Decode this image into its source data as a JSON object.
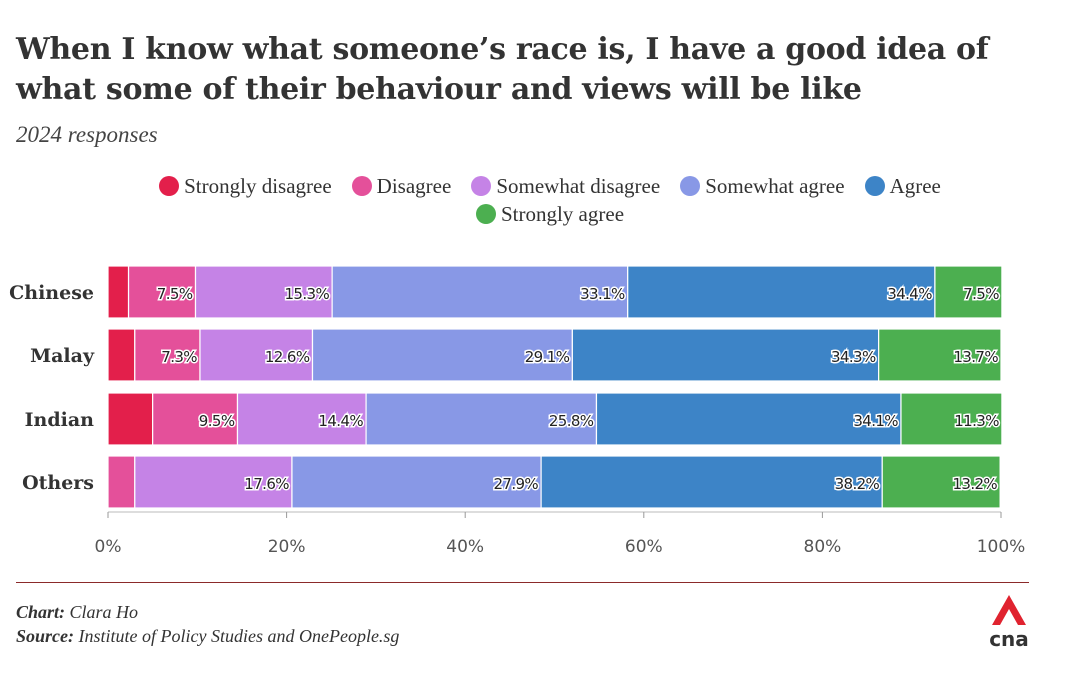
{
  "title": "When I know what someone’s race is, I have a good idea of what some of their behaviour and views will be like",
  "subtitle": "2024 responses",
  "footer": {
    "chart_label": "Chart:",
    "chart_value": "Clara Ho",
    "source_label": "Source:",
    "source_value": "Institute of Policy Studies and OnePeople.sg"
  },
  "logo": {
    "text": "cna",
    "icon": "cna-logo-icon",
    "color": "#e0232f"
  },
  "chart_data": {
    "type": "bar",
    "orientation": "horizontal-stacked-100",
    "categories": [
      "Chinese",
      "Malay",
      "Indian",
      "Others"
    ],
    "series": [
      {
        "name": "Strongly disagree",
        "color": "#e31f4b",
        "values": [
          2.3,
          3.0,
          5.0,
          0.0
        ],
        "labels": [
          "",
          "",
          "",
          ""
        ]
      },
      {
        "name": "Disagree",
        "color": "#e4509a",
        "values": [
          7.5,
          7.3,
          9.5,
          3.0
        ],
        "labels": [
          "7.5%",
          "7.3%",
          "9.5%",
          ""
        ]
      },
      {
        "name": "Somewhat disagree",
        "color": "#c583e6",
        "values": [
          15.3,
          12.6,
          14.4,
          17.6
        ],
        "labels": [
          "15.3%",
          "12.6%",
          "14.4%",
          "17.6%"
        ]
      },
      {
        "name": "Somewhat agree",
        "color": "#8898e6",
        "values": [
          33.1,
          29.1,
          25.8,
          27.9
        ],
        "labels": [
          "33.1%",
          "29.1%",
          "25.8%",
          "27.9%"
        ]
      },
      {
        "name": "Agree",
        "color": "#3d84c7",
        "values": [
          34.4,
          34.3,
          34.1,
          38.2
        ],
        "labels": [
          "34.4%",
          "34.3%",
          "34.1%",
          "38.2%"
        ]
      },
      {
        "name": "Strongly agree",
        "color": "#4caf50",
        "values": [
          7.5,
          13.7,
          11.3,
          13.2
        ],
        "labels": [
          "7.5%",
          "13.7%",
          "11.3%",
          "13.2%"
        ]
      }
    ],
    "xlim": [
      0,
      100
    ],
    "xticks": [
      "0%",
      "20%",
      "40%",
      "60%",
      "80%",
      "100%"
    ],
    "legend": "top",
    "grid": false
  }
}
